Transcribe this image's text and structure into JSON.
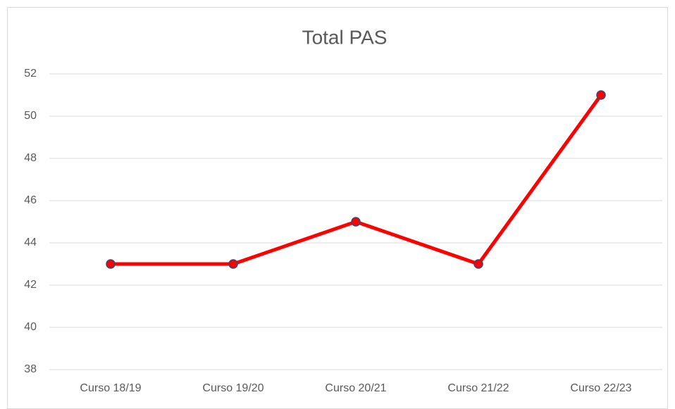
{
  "chart_data": {
    "type": "line",
    "title": "Total PAS",
    "categories": [
      "Curso 18/19",
      "Curso 19/20",
      "Curso 20/21",
      "Curso 21/22",
      "Curso 22/23"
    ],
    "series": [
      {
        "name": "Total PAS",
        "color": "#ff0000",
        "values": [
          43,
          43,
          45,
          43,
          51
        ]
      }
    ],
    "ylim": [
      38,
      52
    ],
    "yticks": [
      38,
      40,
      42,
      44,
      46,
      48,
      50,
      52
    ],
    "grid": true,
    "marker_edge_color": "#2f4a7a"
  }
}
